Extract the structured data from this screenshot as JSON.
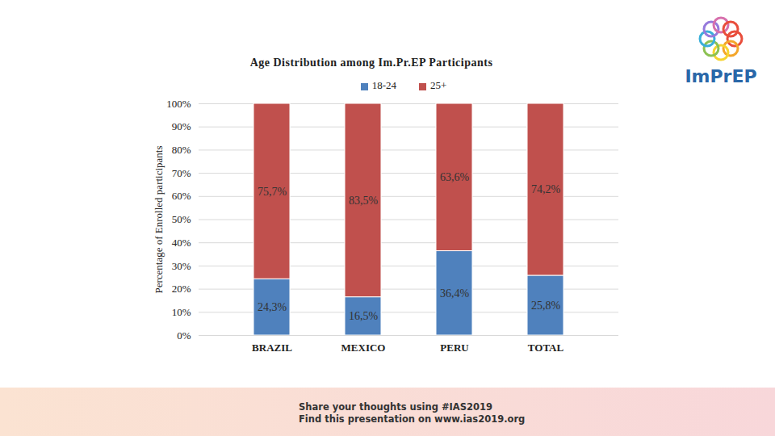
{
  "chart_data": {
    "type": "bar",
    "title": "Age Distribution among Im.Pr.EP Participants",
    "y_label": "Percentage of Enrolled participants",
    "categories": [
      "BRAZIL",
      "MEXICO",
      "PERU",
      "TOTAL"
    ],
    "series": [
      {
        "name": "18-24",
        "color": "#4f81bd",
        "values": [
          24.3,
          16.5,
          36.4,
          25.8
        ],
        "value_labels": [
          "24,3%",
          "16,5%",
          "36,4%",
          "25,8%"
        ]
      },
      {
        "name": "25+",
        "color": "#c0504d",
        "values": [
          75.7,
          83.5,
          63.6,
          74.2
        ],
        "value_labels": [
          "75,7%",
          "83,5%",
          "63,6%",
          "74,2%"
        ]
      }
    ],
    "ylim": [
      0,
      100
    ],
    "yticks": [
      {
        "value": 0,
        "label": "0%"
      },
      {
        "value": 10,
        "label": "10%"
      },
      {
        "value": 20,
        "label": "20%"
      },
      {
        "value": 30,
        "label": "30%"
      },
      {
        "value": 40,
        "label": "40%"
      },
      {
        "value": 50,
        "label": "50%"
      },
      {
        "value": 60,
        "label": "60%"
      },
      {
        "value": 70,
        "label": "70%"
      },
      {
        "value": 80,
        "label": "80%"
      },
      {
        "value": 90,
        "label": "90%"
      },
      {
        "value": 100,
        "label": "100%"
      }
    ],
    "stacked": true,
    "data_labels": true,
    "grid": true,
    "legend": "top"
  },
  "logo": "ImPrEP",
  "footer": [
    "Share your thoughts using #IAS2019",
    "Find this presentation on www.ias2019.org"
  ]
}
